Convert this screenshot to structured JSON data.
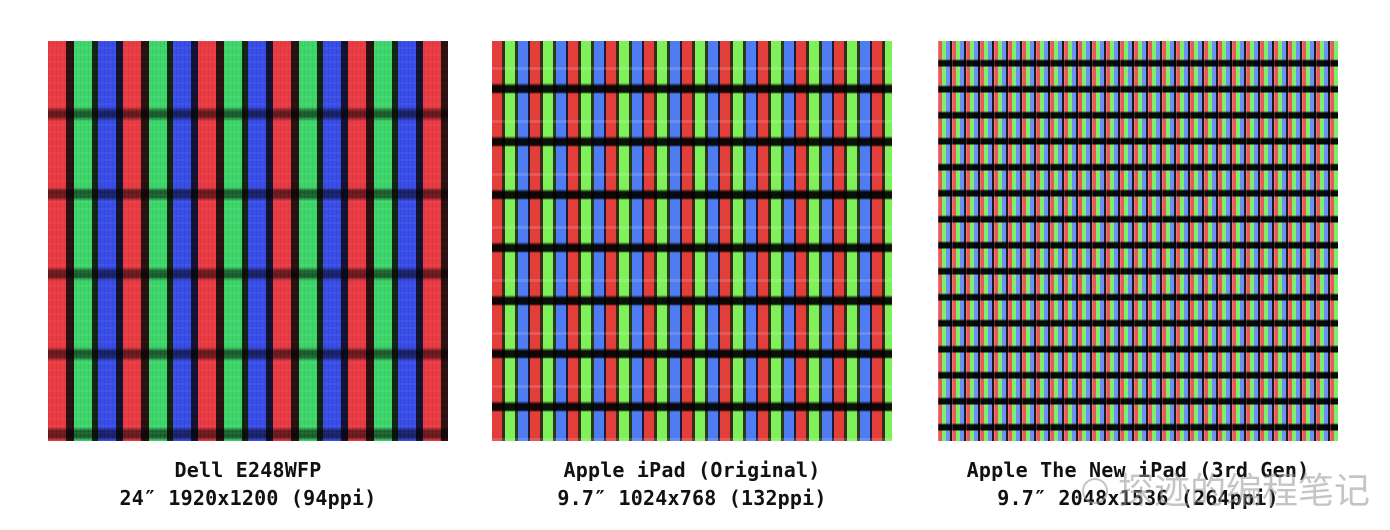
{
  "panels": [
    {
      "caption_line1": "Dell E248WFP",
      "caption_line2": "24″ 1920x1200 (94ppi)"
    },
    {
      "caption_line1": "Apple iPad (Original)",
      "caption_line2": "9.7″ 1024x768 (132ppi)"
    },
    {
      "caption_line1": "Apple The New iPad (3rd Gen)",
      "caption_line2": "9.7″ 2048x1536 (264ppi)"
    }
  ],
  "watermark": {
    "text": "探迹的编程笔记",
    "icon": "wechat-icon"
  }
}
